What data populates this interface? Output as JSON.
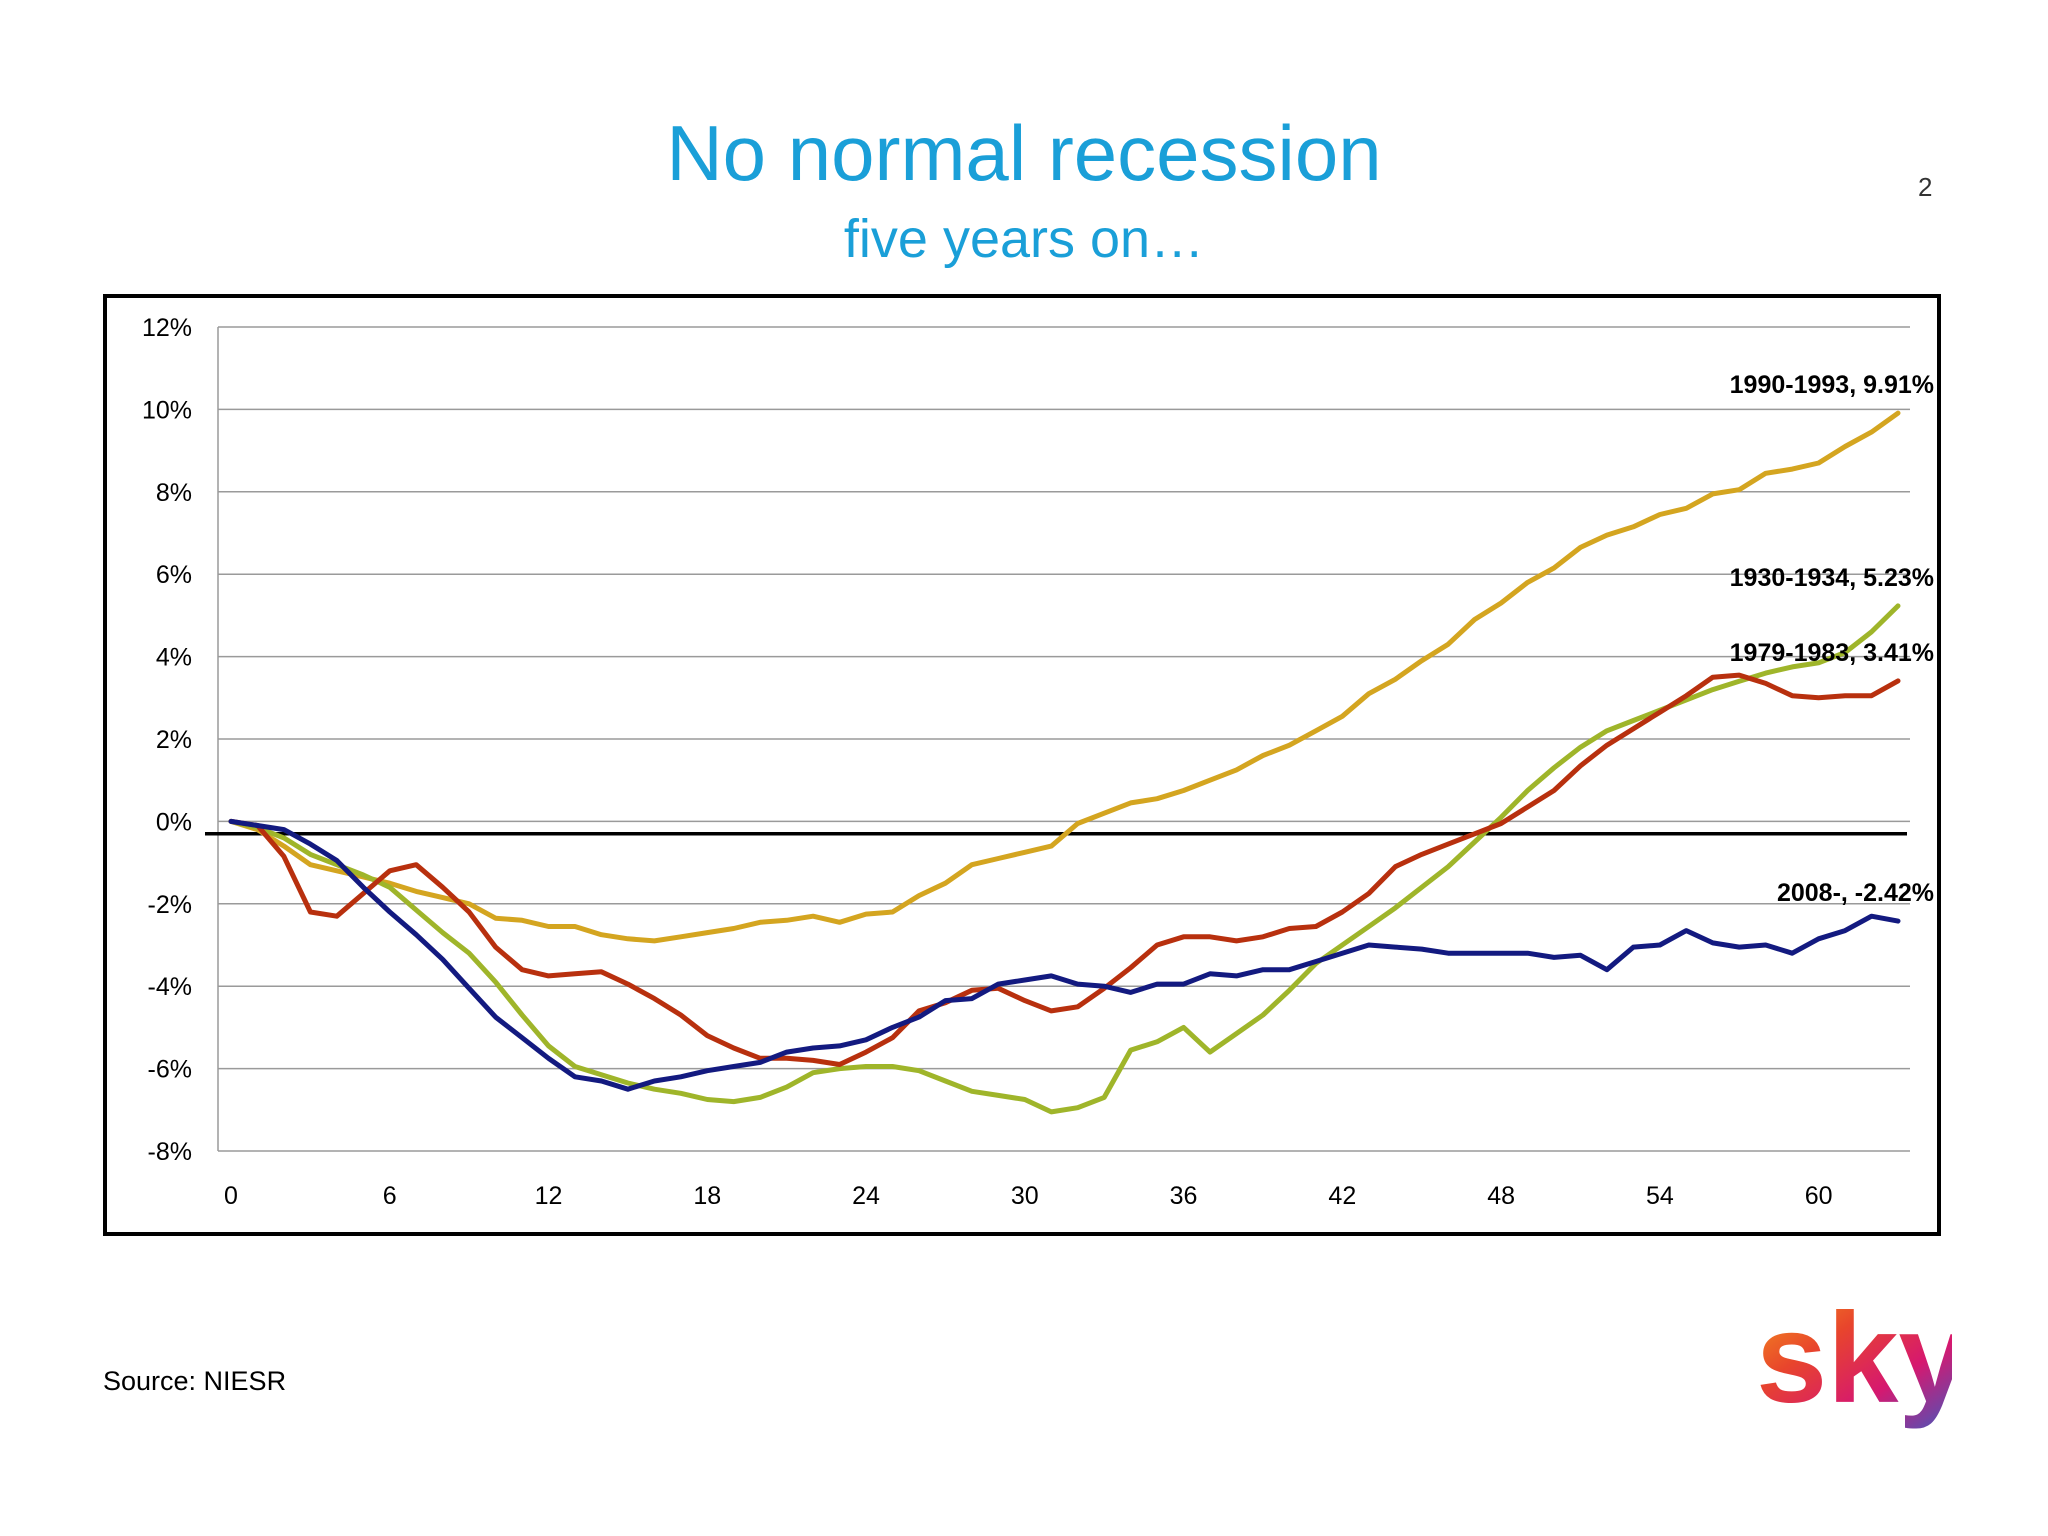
{
  "slide": {
    "title": "No normal recession",
    "subtitle": "five years on…",
    "page_number": "2",
    "source": "Source: NIESR",
    "logo_text": "sky"
  },
  "colors": {
    "title": "#1a9fd8",
    "series_1990": "#d4a520",
    "series_1930": "#9fb52a",
    "series_1979": "#b8300e",
    "series_2008": "#131a80"
  },
  "chart_data": {
    "type": "line",
    "title": "",
    "xlabel": "",
    "ylabel": "",
    "xlim": [
      0,
      63
    ],
    "ylim": [
      -8,
      12
    ],
    "x_ticks": [
      0,
      6,
      12,
      18,
      24,
      30,
      36,
      42,
      48,
      54,
      60
    ],
    "x_tick_labels": [
      "0",
      "6",
      "12",
      "18",
      "24",
      "30",
      "36",
      "42",
      "48",
      "54",
      "60"
    ],
    "y_ticks": [
      -8,
      -6,
      -4,
      -2,
      0,
      2,
      4,
      6,
      8,
      10,
      12
    ],
    "y_tick_labels": [
      "-8%",
      "-6%",
      "-4%",
      "-2%",
      "0%",
      "2%",
      "4%",
      "6%",
      "8%",
      "10%",
      "12%"
    ],
    "grid": true,
    "baseline_value": -0.3,
    "series": [
      {
        "name": "1990-1993",
        "label": "1990-1993, 9.91%",
        "color": "#d4a520",
        "values": [
          0,
          -0.2,
          -0.6,
          -1.05,
          -1.2,
          -1.35,
          -1.5,
          -1.7,
          -1.85,
          -2.0,
          -2.35,
          -2.4,
          -2.55,
          -2.55,
          -2.75,
          -2.85,
          -2.9,
          -2.8,
          -2.7,
          -2.6,
          -2.45,
          -2.4,
          -2.3,
          -2.45,
          -2.25,
          -2.2,
          -1.8,
          -1.5,
          -1.05,
          -0.9,
          -0.75,
          -0.6,
          -0.05,
          0.2,
          0.45,
          0.55,
          0.75,
          1.0,
          1.25,
          1.6,
          1.85,
          2.2,
          2.55,
          3.1,
          3.45,
          3.9,
          4.3,
          4.9,
          5.3,
          5.8,
          6.15,
          6.65,
          6.95,
          7.15,
          7.45,
          7.6,
          7.95,
          8.05,
          8.45,
          8.55,
          8.7,
          9.1,
          9.45,
          9.91
        ]
      },
      {
        "name": "1930-1934",
        "label": "1930-1934, 5.23%",
        "color": "#9fb52a",
        "values": [
          0,
          -0.15,
          -0.4,
          -0.8,
          -1.05,
          -1.3,
          -1.6,
          -2.15,
          -2.7,
          -3.2,
          -3.9,
          -4.7,
          -5.45,
          -5.95,
          -6.15,
          -6.35,
          -6.5,
          -6.6,
          -6.75,
          -6.8,
          -6.7,
          -6.45,
          -6.1,
          -6.0,
          -5.95,
          -5.95,
          -6.05,
          -6.3,
          -6.55,
          -6.65,
          -6.75,
          -7.05,
          -6.95,
          -6.7,
          -5.55,
          -5.35,
          -5.0,
          -5.6,
          -5.15,
          -4.7,
          -4.1,
          -3.45,
          -3.0,
          -2.55,
          -2.1,
          -1.6,
          -1.1,
          -0.5,
          0.1,
          0.75,
          1.3,
          1.8,
          2.2,
          2.45,
          2.7,
          2.95,
          3.2,
          3.4,
          3.6,
          3.75,
          3.85,
          4.1,
          4.6,
          5.23
        ]
      },
      {
        "name": "1979-1983",
        "label": "1979-1983, 3.41%",
        "color": "#b8300e",
        "values": [
          0,
          -0.1,
          -0.85,
          -2.2,
          -2.3,
          -1.75,
          -1.2,
          -1.05,
          -1.6,
          -2.2,
          -3.05,
          -3.6,
          -3.75,
          -3.7,
          -3.65,
          -3.95,
          -4.3,
          -4.7,
          -5.2,
          -5.5,
          -5.75,
          -5.75,
          -5.8,
          -5.9,
          -5.6,
          -5.25,
          -4.6,
          -4.4,
          -4.1,
          -4.05,
          -4.35,
          -4.6,
          -4.5,
          -4.05,
          -3.55,
          -3.0,
          -2.8,
          -2.8,
          -2.9,
          -2.8,
          -2.6,
          -2.55,
          -2.2,
          -1.75,
          -1.1,
          -0.8,
          -0.55,
          -0.3,
          -0.05,
          0.35,
          0.75,
          1.35,
          1.85,
          2.25,
          2.65,
          3.05,
          3.5,
          3.55,
          3.35,
          3.05,
          3.0,
          3.05,
          3.05,
          3.41
        ]
      },
      {
        "name": "2008-",
        "label": "2008-, -2.42%",
        "color": "#131a80",
        "values": [
          0,
          -0.1,
          -0.2,
          -0.55,
          -0.95,
          -1.6,
          -2.2,
          -2.75,
          -3.35,
          -4.05,
          -4.75,
          -5.25,
          -5.75,
          -6.2,
          -6.3,
          -6.5,
          -6.3,
          -6.2,
          -6.05,
          -5.95,
          -5.85,
          -5.6,
          -5.5,
          -5.45,
          -5.3,
          -5.0,
          -4.75,
          -4.35,
          -4.3,
          -3.95,
          -3.85,
          -3.75,
          -3.95,
          -4.0,
          -4.15,
          -3.95,
          -3.95,
          -3.7,
          -3.75,
          -3.6,
          -3.6,
          -3.4,
          -3.2,
          -3.0,
          -3.05,
          -3.1,
          -3.2,
          -3.2,
          -3.2,
          -3.2,
          -3.3,
          -3.25,
          -3.6,
          -3.05,
          -3.0,
          -2.65,
          -2.95,
          -3.05,
          -3.0,
          -3.2,
          -2.85,
          -2.65,
          -2.3,
          -2.42
        ]
      }
    ]
  }
}
